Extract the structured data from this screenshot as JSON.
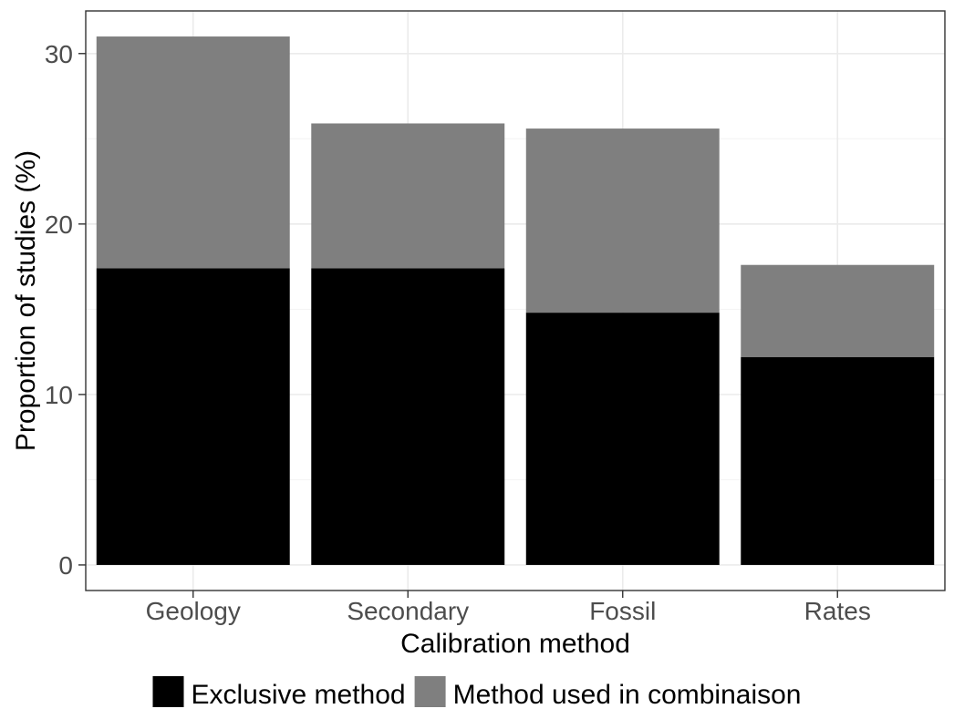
{
  "chart_data": {
    "type": "bar",
    "stacked": true,
    "categories": [
      "Geology",
      "Secondary",
      "Fossil",
      "Rates"
    ],
    "series": [
      {
        "name": "Exclusive method",
        "values": [
          17.4,
          17.4,
          14.8,
          12.2
        ],
        "color": "#000000"
      },
      {
        "name": "Method used in combinaison",
        "values": [
          13.6,
          8.5,
          10.8,
          5.4
        ],
        "color": "#7f7f7f"
      }
    ],
    "title": "",
    "xlabel": "Calibration method",
    "ylabel": "Proportion of studies (%)",
    "ylim": [
      -1.5,
      32.5
    ],
    "yticks": [
      0,
      10,
      20,
      30
    ],
    "ytick_labels": [
      "0",
      "10",
      "20",
      "30"
    ],
    "grid": true,
    "legend_position": "bottom"
  }
}
